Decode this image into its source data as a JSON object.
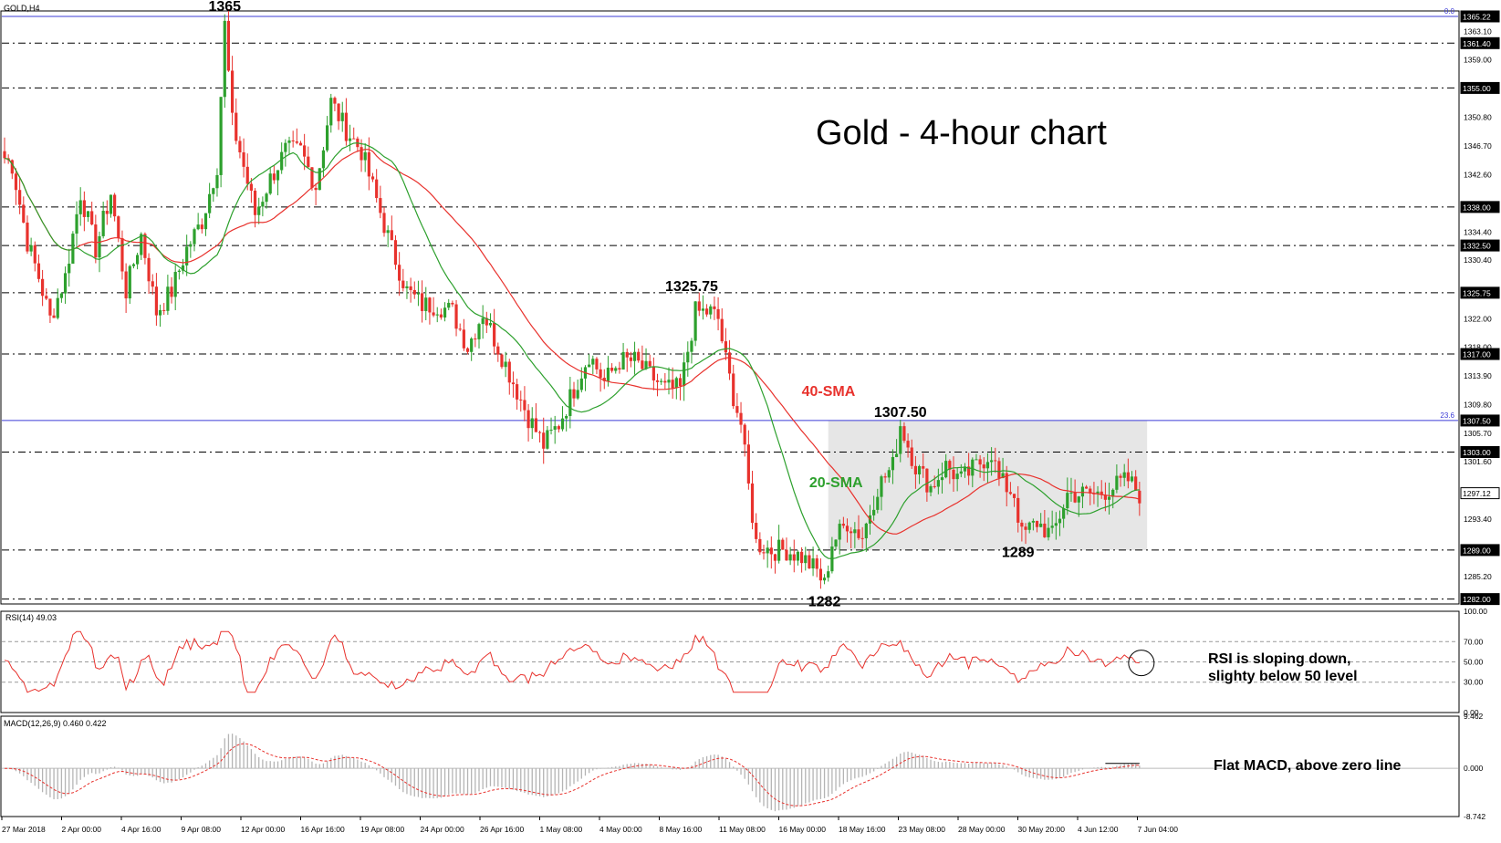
{
  "chart_data": {
    "type": "candlestick",
    "symbol_label": "GOLD,H4",
    "title": "Gold - 4-hour chart",
    "price_axis": {
      "ylim": [
        1281.3,
        1366.0
      ],
      "ticks": [
        "1363.10",
        "1359.00",
        "1350.80",
        "1346.70",
        "1342.60",
        "1334.40",
        "1330.40",
        "1322.00",
        "1318.00",
        "1313.90",
        "1309.80",
        "1305.70",
        "1301.60",
        "1293.40",
        "1285.20"
      ],
      "level_labels": [
        {
          "value": 1365.22,
          "label": "1365.22"
        },
        {
          "value": 1361.4,
          "label": "1361.40"
        },
        {
          "value": 1355.0,
          "label": "1355.00"
        },
        {
          "value": 1338.0,
          "label": "1338.00"
        },
        {
          "value": 1332.5,
          "label": "1332.50"
        },
        {
          "value": 1325.75,
          "label": "1325.75"
        },
        {
          "value": 1317.0,
          "label": "1317.00"
        },
        {
          "value": 1307.5,
          "label": "1307.50"
        },
        {
          "value": 1303.0,
          "label": "1303.00"
        },
        {
          "value": 1297.12,
          "label": "1297.12"
        },
        {
          "value": 1289.0,
          "label": "1289.00"
        },
        {
          "value": 1282.0,
          "label": "1282.00"
        }
      ]
    },
    "horizontal_levels": [
      1361.4,
      1355.0,
      1338.0,
      1332.5,
      1325.75,
      1317.0,
      1303.0,
      1289.0,
      1282.0
    ],
    "fibonacci_lines": [
      {
        "value": 1365.22,
        "label": "0.0"
      },
      {
        "value": 1307.5,
        "label": "23.6"
      }
    ],
    "x_ticks": [
      "27 Mar 2018",
      "2 Apr 00:00",
      "4 Apr 16:00",
      "9 Apr 08:00",
      "12 Apr 00:00",
      "16 Apr 16:00",
      "19 Apr 08:00",
      "24 Apr 00:00",
      "26 Apr 16:00",
      "1 May 08:00",
      "4 May 00:00",
      "8 May 16:00",
      "11 May 08:00",
      "16 May 00:00",
      "18 May 16:00",
      "23 May 08:00",
      "28 May 00:00",
      "30 May 20:00",
      "4 Jun 12:00",
      "7 Jun 04:00"
    ],
    "price_anchors": [
      [
        0,
        1345
      ],
      [
        2,
        1344
      ],
      [
        6,
        1333
      ],
      [
        9,
        1328
      ],
      [
        12,
        1322
      ],
      [
        16,
        1328
      ],
      [
        20,
        1340
      ],
      [
        24,
        1332
      ],
      [
        28,
        1340
      ],
      [
        32,
        1326
      ],
      [
        36,
        1334
      ],
      [
        40,
        1323
      ],
      [
        44,
        1326
      ],
      [
        48,
        1332
      ],
      [
        52,
        1336
      ],
      [
        56,
        1344
      ],
      [
        58,
        1364
      ],
      [
        60,
        1350
      ],
      [
        62,
        1346
      ],
      [
        66,
        1337
      ],
      [
        70,
        1342
      ],
      [
        74,
        1346
      ],
      [
        78,
        1346
      ],
      [
        82,
        1341
      ],
      [
        86,
        1353
      ],
      [
        90,
        1349
      ],
      [
        94,
        1346
      ],
      [
        98,
        1339
      ],
      [
        102,
        1332
      ],
      [
        106,
        1326
      ],
      [
        110,
        1324
      ],
      [
        114,
        1324
      ],
      [
        118,
        1323
      ],
      [
        122,
        1318
      ],
      [
        126,
        1323
      ],
      [
        130,
        1318
      ],
      [
        134,
        1313
      ],
      [
        138,
        1308
      ],
      [
        142,
        1304
      ],
      [
        146,
        1307
      ],
      [
        150,
        1312
      ],
      [
        154,
        1317
      ],
      [
        158,
        1313
      ],
      [
        162,
        1316
      ],
      [
        166,
        1316
      ],
      [
        170,
        1314
      ],
      [
        174,
        1312
      ],
      [
        178,
        1312
      ],
      [
        182,
        1323
      ],
      [
        186,
        1323
      ],
      [
        188,
        1322
      ],
      [
        190,
        1316
      ],
      [
        192,
        1311
      ],
      [
        194,
        1307
      ],
      [
        196,
        1298
      ],
      [
        198,
        1290
      ],
      [
        202,
        1289
      ],
      [
        206,
        1289
      ],
      [
        210,
        1288
      ],
      [
        214,
        1286
      ],
      [
        216,
        1284
      ],
      [
        218,
        1290
      ],
      [
        222,
        1293
      ],
      [
        226,
        1291
      ],
      [
        230,
        1298
      ],
      [
        234,
        1301
      ],
      [
        236,
        1307
      ],
      [
        240,
        1301
      ],
      [
        244,
        1298
      ],
      [
        248,
        1301
      ],
      [
        252,
        1299
      ],
      [
        256,
        1301
      ],
      [
        260,
        1303
      ],
      [
        262,
        1299
      ],
      [
        266,
        1297
      ],
      [
        268,
        1291
      ],
      [
        272,
        1293
      ],
      [
        276,
        1291
      ],
      [
        280,
        1297
      ],
      [
        284,
        1297
      ],
      [
        288,
        1297
      ],
      [
        292,
        1298
      ],
      [
        296,
        1299
      ],
      [
        299,
        1297
      ]
    ],
    "candle_count": 300,
    "candles_note": "O/H/L/C path follows price_anchors with ~1.5-2.5 range noise",
    "annotations": [
      {
        "text": "1365",
        "at": [
          58,
          1366
        ]
      },
      {
        "text": "1325.75",
        "at": [
          181,
          1326
        ]
      },
      {
        "text": "1307.50",
        "at": [
          236,
          1308
        ]
      },
      {
        "text": "1289",
        "at": [
          267,
          1288
        ]
      },
      {
        "text": "1282",
        "at": [
          216,
          1281
        ]
      },
      {
        "text": "40-SMA",
        "at": [
          210,
          1311
        ]
      },
      {
        "text": "20-SMA",
        "at": [
          212,
          1298
        ]
      }
    ],
    "range_box": {
      "x0": 217,
      "x1": 301,
      "y0": 1289,
      "y1": 1307.5
    },
    "rsi": {
      "label": "RSI(14) 49.03",
      "ticks": [
        "100.00",
        "70.00",
        "50.00",
        "30.00",
        "0.00"
      ],
      "levels": [
        70,
        50,
        30
      ],
      "note": "RSI is sloping down, slighty below 50 level",
      "note_lines": [
        "RSI is sloping down,",
        "slighty below 50 level"
      ]
    },
    "macd": {
      "label": "MACD(12,26,9) 0.460 0.422",
      "ticks": [
        "9.462",
        "0.000",
        "-8.742"
      ],
      "ylim": [
        -8.742,
        9.462
      ],
      "note": "Flat MACD, above zero line"
    },
    "sma_labels": {
      "sma20": "20-SMA",
      "sma40": "40-SMA"
    },
    "colors": {
      "sma20": "#2da02d",
      "sma40": "#e8322d",
      "candles": "#e8322d",
      "grid": "#000000",
      "fib": "#3b3bd6",
      "range_box": "#e6e6e6",
      "rsi_line": "#e8322d",
      "macd_hist": "#b4b4b4",
      "macd_signal": "#e8322d"
    }
  }
}
